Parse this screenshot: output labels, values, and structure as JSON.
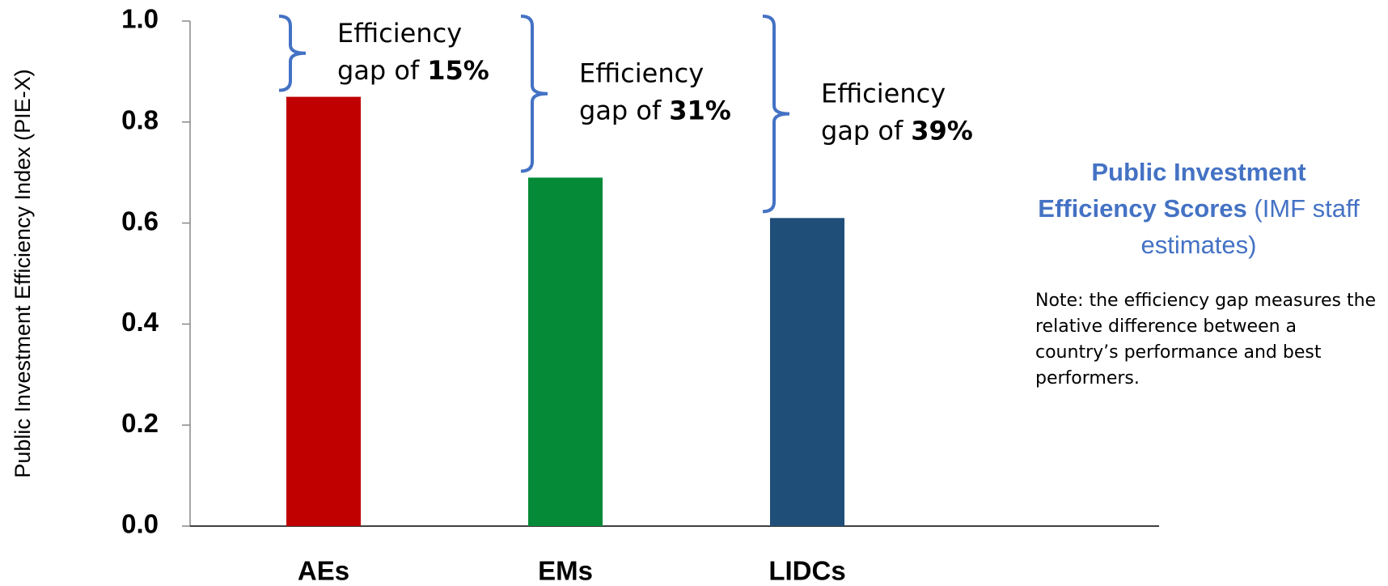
{
  "chart_data": {
    "type": "bar",
    "y_axis_label": "Public Investment Efficiency Index (PIE-X)",
    "categories": [
      "AEs",
      "EMs",
      "LIDCs"
    ],
    "series": [
      {
        "name": "PIE-X",
        "values": [
          0.85,
          0.69,
          0.61
        ]
      }
    ],
    "colors": [
      "#c00000",
      "#058a37",
      "#1f4e79"
    ],
    "ylim": [
      0,
      1
    ],
    "yticks": [
      {
        "value": 0,
        "label": "0.0"
      },
      0.2,
      0.4,
      0.6,
      0.8,
      {
        "value": 1,
        "label": "1.0"
      }
    ],
    "annotations": [
      {
        "line1": "Efficiency",
        "line2": "gap of",
        "gap": "15%"
      },
      {
        "line1": "Efficiency",
        "line2": "gap of",
        "gap": "31%"
      },
      {
        "line1": "Efficiency",
        "line2": "gap of",
        "gap": "39%"
      }
    ],
    "brace_color": "#4472c4",
    "side_title": {
      "bold": "Public Investment Efficiency Scores",
      "normal": "(IMF staff estimates)"
    },
    "note": "Note: the efficiency gap measures the relative difference between a country’s performance and best performers."
  }
}
